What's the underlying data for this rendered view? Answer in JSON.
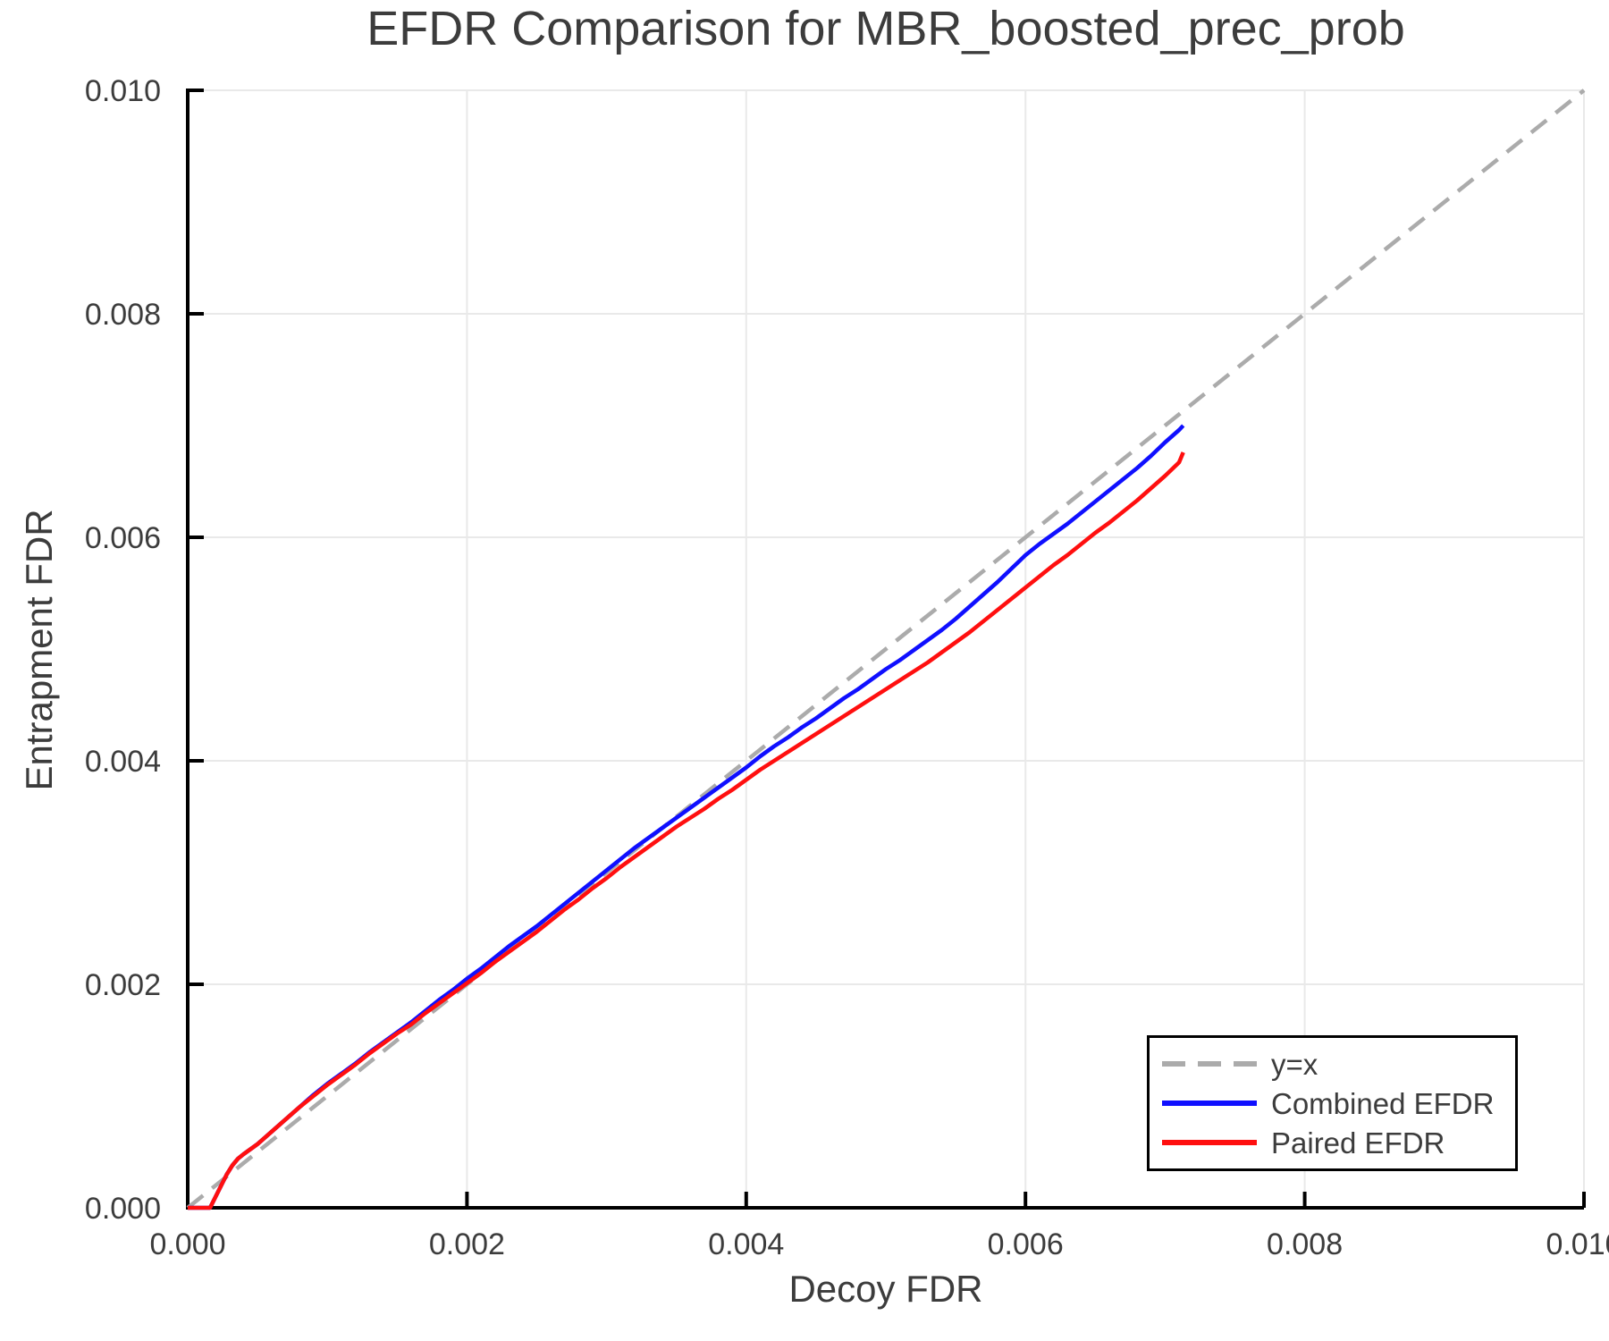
{
  "chart_data": {
    "type": "line",
    "title": "EFDR Comparison for MBR_boosted_prec_prob",
    "xlabel": "Decoy FDR",
    "ylabel": "Entrapment FDR",
    "xlim": [
      0,
      0.01
    ],
    "ylim": [
      0,
      0.01
    ],
    "grid": true,
    "legend_position": "lower right",
    "xticks": {
      "values": [
        0,
        0.002,
        0.004,
        0.006,
        0.008,
        0.01
      ],
      "labels": [
        "0.000",
        "0.002",
        "0.004",
        "0.006",
        "0.008",
        "0.010"
      ]
    },
    "yticks": {
      "values": [
        0,
        0.002,
        0.004,
        0.006,
        0.008,
        0.01
      ],
      "labels": [
        "0.000",
        "0.002",
        "0.004",
        "0.006",
        "0.008",
        "0.010"
      ]
    },
    "style": {
      "grid_color": "#e9e9e9",
      "spine_color": "#000000",
      "text_color": "#3c3c3c",
      "background": "#ffffff"
    },
    "series": [
      {
        "id": "identity",
        "name": "y=x",
        "color": "#ababab",
        "dash": "22 13",
        "points": [
          [
            0,
            0
          ],
          [
            0.01,
            0.01
          ]
        ]
      },
      {
        "id": "combined-efdr",
        "name": "Combined EFDR",
        "color": "#0f0fff",
        "dash": "",
        "points": [
          [
            0,
            0
          ],
          [
            0.00016,
            0
          ],
          [
            0.0002,
            0.0001
          ],
          [
            0.00024,
            0.0002
          ],
          [
            0.00028,
            0.0003
          ],
          [
            0.00032,
            0.00038
          ],
          [
            0.00036,
            0.00044
          ],
          [
            0.0004,
            0.00048
          ],
          [
            0.0005,
            0.00057
          ],
          [
            0.0006,
            0.00068
          ],
          [
            0.0007,
            0.00079
          ],
          [
            0.0008,
            0.0009
          ],
          [
            0.0009,
            0.00101
          ],
          [
            0.001,
            0.00111
          ],
          [
            0.0011,
            0.0012
          ],
          [
            0.0012,
            0.00129
          ],
          [
            0.0013,
            0.00139
          ],
          [
            0.0014,
            0.00148
          ],
          [
            0.0015,
            0.00157
          ],
          [
            0.0016,
            0.00166
          ],
          [
            0.0017,
            0.00176
          ],
          [
            0.0018,
            0.00186
          ],
          [
            0.0019,
            0.00195
          ],
          [
            0.002,
            0.00205
          ],
          [
            0.0021,
            0.00214
          ],
          [
            0.0022,
            0.00224
          ],
          [
            0.0023,
            0.00234
          ],
          [
            0.0024,
            0.00243
          ],
          [
            0.0025,
            0.00252
          ],
          [
            0.0026,
            0.00262
          ],
          [
            0.0027,
            0.00272
          ],
          [
            0.0028,
            0.00282
          ],
          [
            0.0029,
            0.00292
          ],
          [
            0.003,
            0.00302
          ],
          [
            0.0031,
            0.00312
          ],
          [
            0.0032,
            0.00322
          ],
          [
            0.0033,
            0.00331
          ],
          [
            0.0034,
            0.0034
          ],
          [
            0.0035,
            0.00349
          ],
          [
            0.0036,
            0.00358
          ],
          [
            0.0037,
            0.00367
          ],
          [
            0.0038,
            0.00376
          ],
          [
            0.0039,
            0.00385
          ],
          [
            0.004,
            0.00394
          ],
          [
            0.0041,
            0.00404
          ],
          [
            0.0042,
            0.00413
          ],
          [
            0.0043,
            0.00421
          ],
          [
            0.0044,
            0.0043
          ],
          [
            0.0045,
            0.00438
          ],
          [
            0.0046,
            0.00447
          ],
          [
            0.0047,
            0.00456
          ],
          [
            0.0048,
            0.00464
          ],
          [
            0.0049,
            0.00473
          ],
          [
            0.005,
            0.00482
          ],
          [
            0.0051,
            0.0049
          ],
          [
            0.0052,
            0.00499
          ],
          [
            0.0053,
            0.00508
          ],
          [
            0.0054,
            0.00517
          ],
          [
            0.0055,
            0.00527
          ],
          [
            0.0056,
            0.00538
          ],
          [
            0.0057,
            0.00549
          ],
          [
            0.0058,
            0.0056
          ],
          [
            0.0059,
            0.00572
          ],
          [
            0.006,
            0.00584
          ],
          [
            0.0061,
            0.00594
          ],
          [
            0.0062,
            0.00603
          ],
          [
            0.0063,
            0.00612
          ],
          [
            0.0064,
            0.00622
          ],
          [
            0.0065,
            0.00632
          ],
          [
            0.0066,
            0.00642
          ],
          [
            0.0067,
            0.00652
          ],
          [
            0.0068,
            0.00662
          ],
          [
            0.0069,
            0.00673
          ],
          [
            0.007,
            0.00685
          ],
          [
            0.0071,
            0.00696
          ],
          [
            0.00713,
            0.007
          ]
        ]
      },
      {
        "id": "paired-efdr",
        "name": "Paired EFDR",
        "color": "#ff0f0f",
        "dash": "",
        "points": [
          [
            0,
            0
          ],
          [
            0.00016,
            0
          ],
          [
            0.0002,
            0.0001
          ],
          [
            0.00024,
            0.0002
          ],
          [
            0.00028,
            0.0003
          ],
          [
            0.00032,
            0.00038
          ],
          [
            0.00036,
            0.00044
          ],
          [
            0.0004,
            0.00048
          ],
          [
            0.0005,
            0.00057
          ],
          [
            0.0006,
            0.00068
          ],
          [
            0.0007,
            0.00079
          ],
          [
            0.0008,
            0.0009
          ],
          [
            0.0009,
            0.001
          ],
          [
            0.001,
            0.0011
          ],
          [
            0.0011,
            0.00119
          ],
          [
            0.0012,
            0.00128
          ],
          [
            0.0013,
            0.00138
          ],
          [
            0.0014,
            0.00147
          ],
          [
            0.0015,
            0.00156
          ],
          [
            0.0016,
            0.00164
          ],
          [
            0.0017,
            0.00174
          ],
          [
            0.0018,
            0.00183
          ],
          [
            0.0019,
            0.00192
          ],
          [
            0.002,
            0.00201
          ],
          [
            0.0021,
            0.0021
          ],
          [
            0.0022,
            0.0022
          ],
          [
            0.0023,
            0.00229
          ],
          [
            0.0024,
            0.00238
          ],
          [
            0.0025,
            0.00247
          ],
          [
            0.0026,
            0.00257
          ],
          [
            0.0027,
            0.00267
          ],
          [
            0.0028,
            0.00276
          ],
          [
            0.0029,
            0.00286
          ],
          [
            0.003,
            0.00295
          ],
          [
            0.0031,
            0.00305
          ],
          [
            0.0032,
            0.00314
          ],
          [
            0.0033,
            0.00323
          ],
          [
            0.0034,
            0.00332
          ],
          [
            0.0035,
            0.00341
          ],
          [
            0.0036,
            0.00349
          ],
          [
            0.0037,
            0.00357
          ],
          [
            0.0038,
            0.00366
          ],
          [
            0.0039,
            0.00374
          ],
          [
            0.004,
            0.00383
          ],
          [
            0.0041,
            0.00392
          ],
          [
            0.0042,
            0.004
          ],
          [
            0.0043,
            0.00408
          ],
          [
            0.0044,
            0.00416
          ],
          [
            0.0045,
            0.00424
          ],
          [
            0.0046,
            0.00432
          ],
          [
            0.0047,
            0.0044
          ],
          [
            0.0048,
            0.00448
          ],
          [
            0.0049,
            0.00456
          ],
          [
            0.005,
            0.00464
          ],
          [
            0.0051,
            0.00472
          ],
          [
            0.0052,
            0.0048
          ],
          [
            0.0053,
            0.00488
          ],
          [
            0.0054,
            0.00497
          ],
          [
            0.0055,
            0.00506
          ],
          [
            0.0056,
            0.00515
          ],
          [
            0.0057,
            0.00525
          ],
          [
            0.0058,
            0.00535
          ],
          [
            0.0059,
            0.00545
          ],
          [
            0.006,
            0.00555
          ],
          [
            0.0061,
            0.00565
          ],
          [
            0.0062,
            0.00575
          ],
          [
            0.0063,
            0.00584
          ],
          [
            0.0064,
            0.00594
          ],
          [
            0.0065,
            0.00604
          ],
          [
            0.0066,
            0.00613
          ],
          [
            0.0067,
            0.00623
          ],
          [
            0.0068,
            0.00633
          ],
          [
            0.0069,
            0.00644
          ],
          [
            0.007,
            0.00655
          ],
          [
            0.0071,
            0.00667
          ],
          [
            0.00713,
            0.00676
          ]
        ]
      }
    ]
  }
}
